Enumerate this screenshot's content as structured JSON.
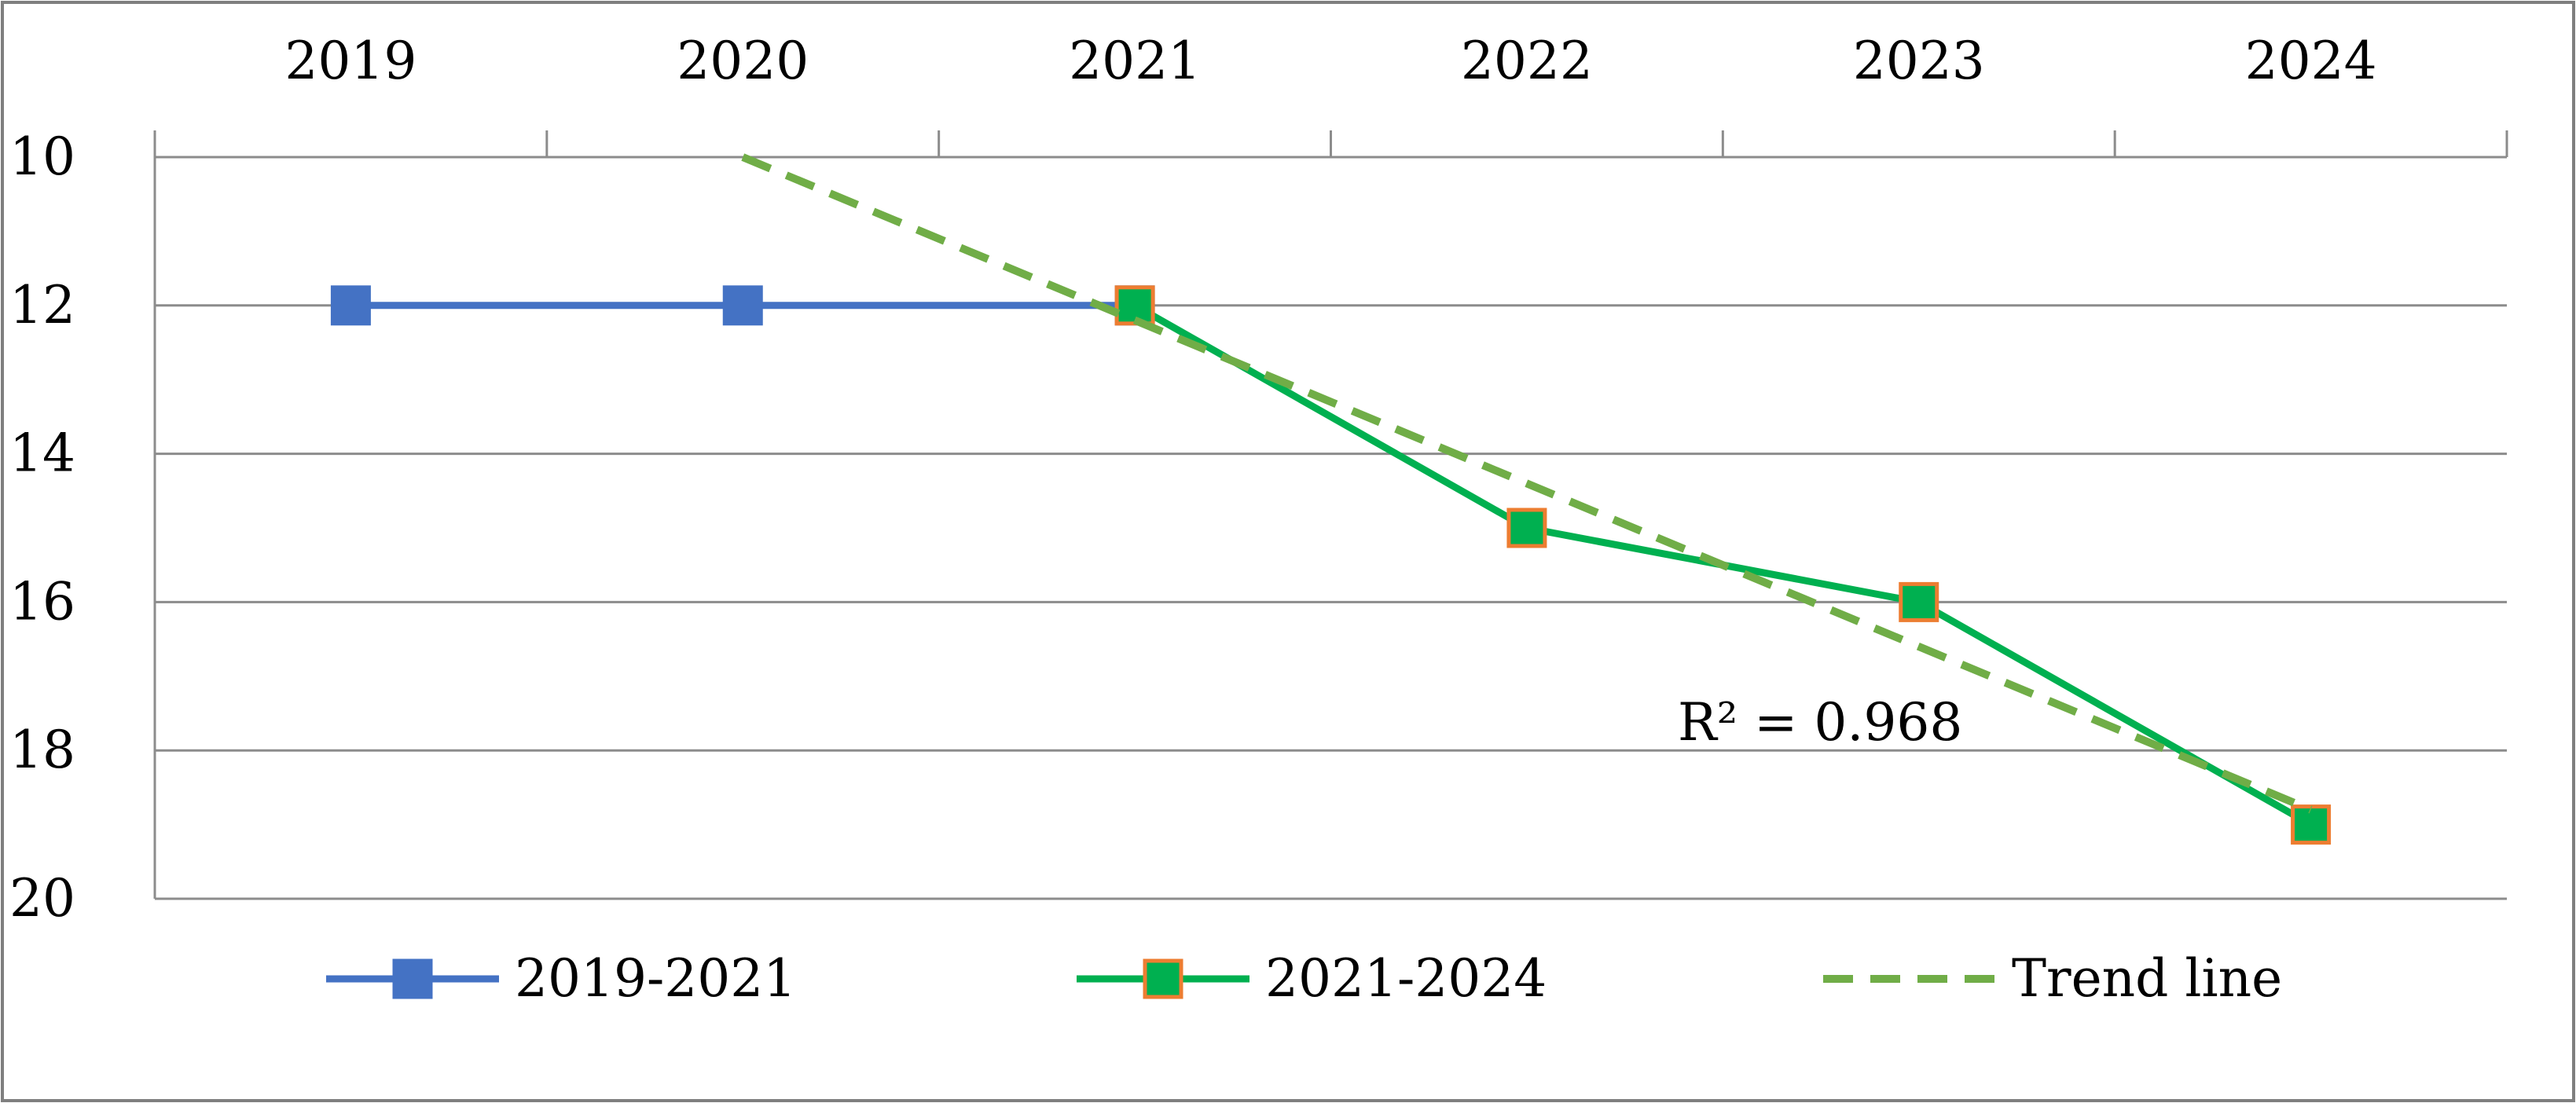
{
  "chart_data": {
    "type": "line",
    "title": "",
    "xlabel": "",
    "ylabel": "",
    "categories": [
      "2019",
      "2020",
      "2021",
      "2022",
      "2023",
      "2024"
    ],
    "y_axis": {
      "inverted": true,
      "range": [
        10,
        20
      ],
      "ticks": [
        10,
        12,
        14,
        16,
        18,
        20
      ],
      "grid": true
    },
    "x_axis_position": "top",
    "series": [
      {
        "name": "2019-2021",
        "x": [
          "2019",
          "2020",
          "2021"
        ],
        "values": [
          12,
          12,
          12
        ],
        "color": "#4472C4",
        "marker": "square",
        "marker_fill": "#4472C4",
        "marker_edge": "#4472C4",
        "line_style": "solid"
      },
      {
        "name": "2021-2024",
        "x": [
          "2021",
          "2022",
          "2023",
          "2024"
        ],
        "values": [
          12,
          15,
          16,
          19
        ],
        "color": "#00B050",
        "marker": "square",
        "marker_fill": "#00B050",
        "marker_edge": "#ED7D31",
        "line_style": "solid"
      },
      {
        "name": "Trend line",
        "x": [
          "2020",
          "2024"
        ],
        "values": [
          10,
          18.8
        ],
        "color": "#70AD47",
        "marker": "none",
        "line_style": "dashed"
      }
    ],
    "annotations": [
      {
        "text": "R² = 0.968"
      }
    ],
    "legend": {
      "placement": "bottom",
      "entries": [
        "2019-2021",
        "2021-2024",
        "Trend line"
      ]
    }
  }
}
